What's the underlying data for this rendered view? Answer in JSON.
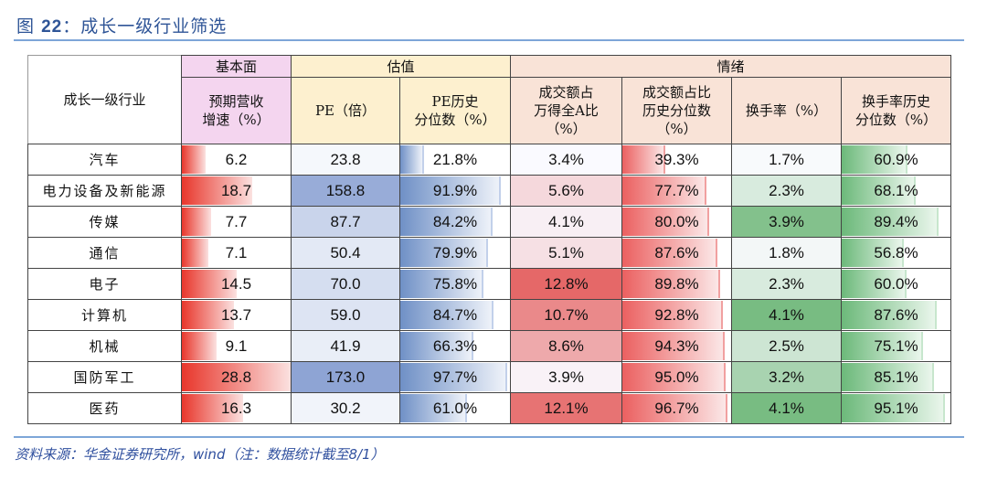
{
  "title": {
    "prefix": "图",
    "number": "22",
    "text": "：成长一级行业筛选"
  },
  "header": {
    "row_label": "成长一级行业",
    "groups": {
      "fundamental": "基本面",
      "valuation": "估值",
      "sentiment": "情绪"
    },
    "columns": {
      "revenue_growth": [
        "预期营收",
        "增速（%）"
      ],
      "pe": [
        "PE（倍）"
      ],
      "pe_percentile": [
        "PE历史",
        "分位数（%）"
      ],
      "turnover_share": [
        "成交额占",
        "万得全A比",
        "（%）"
      ],
      "turnover_share_percentile": [
        "成交额占比",
        "历史分位数",
        "（%）"
      ],
      "turnover_rate": [
        "换手率（%）"
      ],
      "turnover_rate_percentile": [
        "换手率历史",
        "分位数（%）"
      ]
    }
  },
  "colors": {
    "fundamental_header": "#f4d5ef",
    "valuation_header": "#fdf0cf",
    "sentiment_header": "#f9e3d7",
    "bar_red": "#e8362b",
    "bar_blue": "#6f90c6",
    "bar_rose": "#eb6060",
    "bar_green": "#6cb97a",
    "title_blue": "#2f5597"
  },
  "rows": [
    {
      "industry": "汽车",
      "revenue_growth": "6.2",
      "pe": "23.8",
      "pe_percentile": "21.8%",
      "turnover_share": "3.4%",
      "turnover_share_percentile": "39.3%",
      "turnover_rate": "1.7%",
      "turnover_rate_percentile": "60.9%"
    },
    {
      "industry": "电力设备及新能源",
      "revenue_growth": "18.7",
      "pe": "158.8",
      "pe_percentile": "91.9%",
      "turnover_share": "5.6%",
      "turnover_share_percentile": "77.7%",
      "turnover_rate": "2.3%",
      "turnover_rate_percentile": "68.1%"
    },
    {
      "industry": "传媒",
      "revenue_growth": "7.7",
      "pe": "87.7",
      "pe_percentile": "84.2%",
      "turnover_share": "4.1%",
      "turnover_share_percentile": "80.0%",
      "turnover_rate": "3.9%",
      "turnover_rate_percentile": "89.4%"
    },
    {
      "industry": "通信",
      "revenue_growth": "7.1",
      "pe": "50.4",
      "pe_percentile": "79.9%",
      "turnover_share": "5.1%",
      "turnover_share_percentile": "87.6%",
      "turnover_rate": "1.8%",
      "turnover_rate_percentile": "56.8%"
    },
    {
      "industry": "电子",
      "revenue_growth": "14.5",
      "pe": "70.0",
      "pe_percentile": "75.8%",
      "turnover_share": "12.8%",
      "turnover_share_percentile": "89.8%",
      "turnover_rate": "2.3%",
      "turnover_rate_percentile": "60.0%"
    },
    {
      "industry": "计算机",
      "revenue_growth": "13.7",
      "pe": "59.0",
      "pe_percentile": "84.7%",
      "turnover_share": "10.7%",
      "turnover_share_percentile": "92.8%",
      "turnover_rate": "4.1%",
      "turnover_rate_percentile": "87.6%"
    },
    {
      "industry": "机械",
      "revenue_growth": "9.1",
      "pe": "41.9",
      "pe_percentile": "66.3%",
      "turnover_share": "8.6%",
      "turnover_share_percentile": "94.3%",
      "turnover_rate": "2.5%",
      "turnover_rate_percentile": "75.1%"
    },
    {
      "industry": "国防军工",
      "revenue_growth": "28.8",
      "pe": "173.0",
      "pe_percentile": "97.7%",
      "turnover_share": "3.9%",
      "turnover_share_percentile": "95.0%",
      "turnover_rate": "3.2%",
      "turnover_rate_percentile": "85.1%"
    },
    {
      "industry": "医药",
      "revenue_growth": "16.3",
      "pe": "30.2",
      "pe_percentile": "61.0%",
      "turnover_share": "12.1%",
      "turnover_share_percentile": "96.7%",
      "turnover_rate": "4.1%",
      "turnover_rate_percentile": "95.1%"
    }
  ],
  "source": "资料来源：华金证券研究所，wind（注：数据统计截至8/1）"
}
